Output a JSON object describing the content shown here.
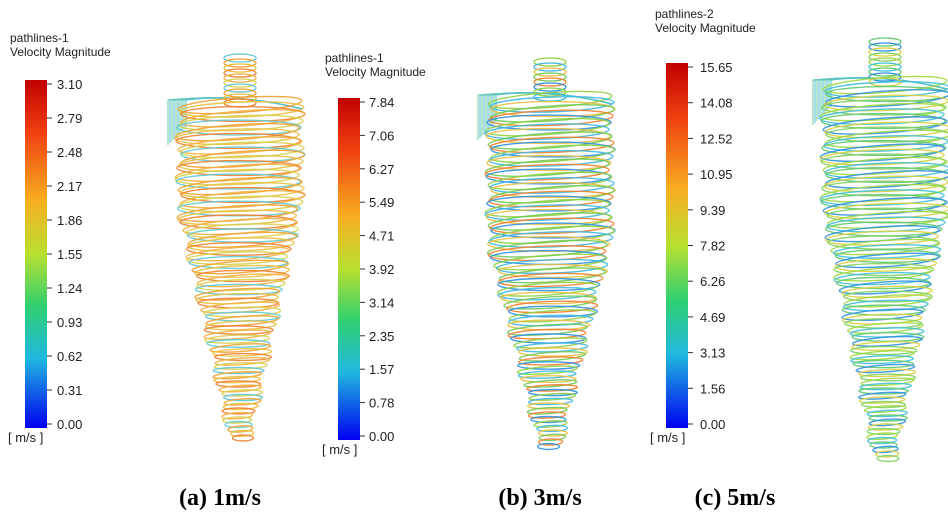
{
  "panels": [
    {
      "title": "pathlines-1",
      "subtitle": "Velocity Magnitude",
      "ticks": [
        "3.10",
        "2.79",
        "2.48",
        "2.17",
        "1.86",
        "1.55",
        "1.24",
        "0.93",
        "0.62",
        "0.31",
        "0.00"
      ],
      "unit": "[ m/s ]",
      "caption": "(a)  1m/s"
    },
    {
      "title": "pathlines-1",
      "subtitle": "Velocity Magnitude",
      "ticks": [
        "7.84",
        "7.06",
        "6.27",
        "5.49",
        "4.71",
        "3.92",
        "3.14",
        "2.35",
        "1.57",
        "0.78",
        "0.00"
      ],
      "unit": "[ m/s ]",
      "caption": "(b)  3m/s"
    },
    {
      "title": "pathlines-2",
      "subtitle": "Velocity Magnitude",
      "ticks": [
        "15.65",
        "14.08",
        "12.52",
        "10.95",
        "9.39",
        "7.82",
        "6.26",
        "4.69",
        "3.13",
        "1.56",
        "0.00"
      ],
      "unit": "[ m/s ]",
      "caption": "(c)  5m/s"
    }
  ]
}
